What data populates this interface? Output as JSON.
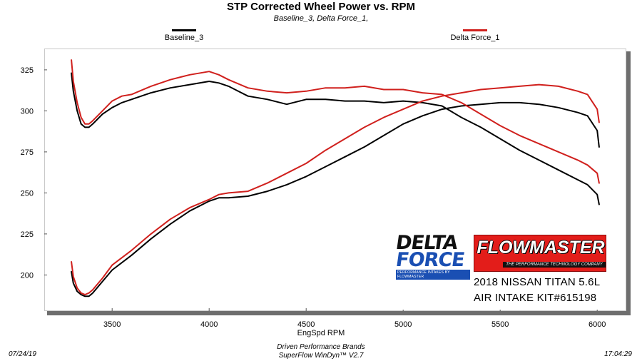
{
  "chart_data": {
    "type": "line",
    "title": "STP Corrected Wheel Power vs. RPM",
    "subtitle": "Baseline_3, Delta Force_1,",
    "xlabel": "EngSpd  RPM",
    "ylabel": "",
    "xlim": [
      3150,
      6150
    ],
    "ylim": [
      178,
      338
    ],
    "x_ticks": [
      "3500",
      "4000",
      "4500",
      "5000",
      "5500",
      "6000"
    ],
    "y_ticks": [
      "200",
      "225",
      "250",
      "275",
      "300",
      "325"
    ],
    "grid": false,
    "legend_position": "top",
    "series": [
      {
        "name": "Baseline_3",
        "color": "#000000",
        "measure": "torque",
        "x": [
          3290,
          3300,
          3320,
          3340,
          3360,
          3380,
          3400,
          3450,
          3500,
          3550,
          3600,
          3700,
          3800,
          3900,
          4000,
          4050,
          4100,
          4200,
          4300,
          4400,
          4500,
          4600,
          4700,
          4800,
          4900,
          5000,
          5100,
          5200,
          5300,
          5400,
          5500,
          5600,
          5700,
          5800,
          5900,
          5950,
          6000,
          6010
        ],
        "y": [
          323,
          312,
          300,
          292,
          290,
          290,
          292,
          298,
          302,
          305,
          307,
          311,
          314,
          316,
          318,
          317,
          315,
          309,
          307,
          304,
          307,
          307,
          306,
          306,
          305,
          306,
          305,
          303,
          296,
          290,
          283,
          276,
          270,
          264,
          258,
          255,
          249,
          243
        ]
      },
      {
        "name": "Baseline_3",
        "color": "#000000",
        "measure": "power",
        "x": [
          3290,
          3300,
          3320,
          3340,
          3360,
          3380,
          3400,
          3450,
          3500,
          3600,
          3700,
          3800,
          3900,
          4000,
          4050,
          4100,
          4200,
          4300,
          4400,
          4500,
          4600,
          4700,
          4800,
          4900,
          5000,
          5100,
          5200,
          5300,
          5400,
          5500,
          5600,
          5700,
          5800,
          5900,
          5950,
          6000,
          6010
        ],
        "y": [
          202,
          195,
          190,
          188,
          187,
          187,
          189,
          196,
          203,
          212,
          222,
          231,
          239,
          245,
          247,
          247,
          248,
          251,
          255,
          260,
          266,
          272,
          278,
          285,
          292,
          297,
          301,
          303,
          304,
          305,
          305,
          304,
          302,
          299,
          297,
          288,
          278
        ]
      },
      {
        "name": "Delta Force_1",
        "color": "#d0201d",
        "measure": "torque",
        "x": [
          3290,
          3300,
          3320,
          3340,
          3360,
          3380,
          3400,
          3450,
          3500,
          3550,
          3600,
          3700,
          3800,
          3900,
          4000,
          4050,
          4100,
          4200,
          4300,
          4400,
          4500,
          4600,
          4700,
          4800,
          4900,
          5000,
          5100,
          5200,
          5300,
          5400,
          5500,
          5600,
          5700,
          5800,
          5900,
          5950,
          6000,
          6010
        ],
        "y": [
          331,
          318,
          305,
          296,
          292,
          292,
          294,
          300,
          306,
          309,
          310,
          315,
          319,
          322,
          324,
          322,
          319,
          314,
          312,
          311,
          312,
          314,
          314,
          315,
          313,
          313,
          311,
          310,
          305,
          298,
          291,
          285,
          280,
          275,
          270,
          267,
          262,
          256
        ]
      },
      {
        "name": "Delta Force_1",
        "color": "#d0201d",
        "measure": "power",
        "x": [
          3290,
          3300,
          3320,
          3340,
          3360,
          3380,
          3400,
          3450,
          3500,
          3600,
          3700,
          3800,
          3900,
          4000,
          4050,
          4100,
          4200,
          4300,
          4400,
          4500,
          4600,
          4700,
          4800,
          4900,
          5000,
          5100,
          5200,
          5300,
          5400,
          5500,
          5600,
          5700,
          5800,
          5900,
          5950,
          6000,
          6010
        ],
        "y": [
          208,
          199,
          192,
          189,
          188,
          189,
          191,
          198,
          206,
          215,
          225,
          234,
          241,
          246,
          249,
          250,
          251,
          256,
          262,
          268,
          276,
          283,
          290,
          296,
          301,
          306,
          309,
          311,
          313,
          314,
          315,
          316,
          315,
          312,
          310,
          301,
          293
        ]
      }
    ]
  },
  "legend": {
    "baseline_label": "Baseline_3",
    "baseline_color": "#000000",
    "deltaforce_label": "Delta Force_1",
    "deltaforce_color": "#d0201d"
  },
  "branding": {
    "delta_word": "DELTA",
    "force_word": "FORCE",
    "delta_tagline": "PERFORMANCE INTAKES BY FLOWMASTER",
    "flowmaster_word": "FLOWMASTER",
    "flowmaster_tagline": "THE PERFORMANCE TECHNOLOGY COMPANY",
    "vehicle": "2018 NISSAN TITAN 5.6L",
    "kit": "AIR INTAKE KIT#615198",
    "flowmaster_color": "#e31d1a",
    "force_color": "#1a4fb3"
  },
  "footer": {
    "date": "07/24/19",
    "time": "17:04:29",
    "company": "Driven Performance Brands",
    "software": "SuperFlow WinDyn™  V2.7"
  }
}
